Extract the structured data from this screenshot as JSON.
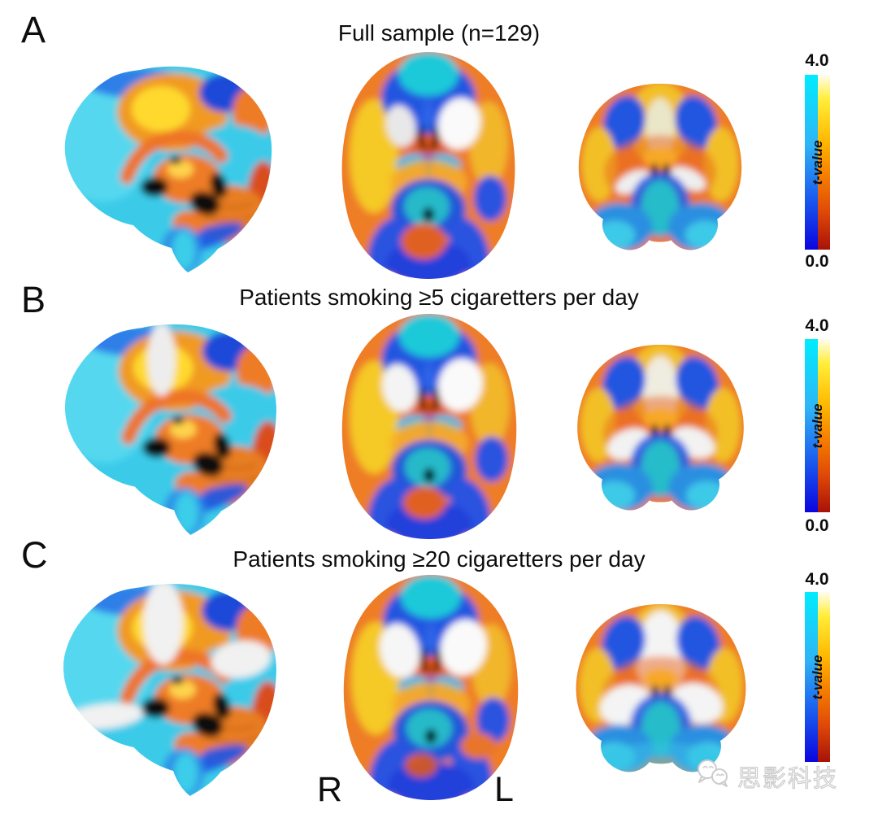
{
  "figure": {
    "panels": [
      {
        "letter": "A",
        "title": "Full sample (n=129)",
        "colorbar": {
          "max": "4.0",
          "min": "0.0",
          "label": "t-value"
        }
      },
      {
        "letter": "B",
        "title": "Patients smoking ≥5 cigaretters per day",
        "colorbar": {
          "max": "4.0",
          "min": "0.0",
          "label": "t-value"
        }
      },
      {
        "letter": "C",
        "title": "Patients smoking ≥20 cigaretters per day",
        "colorbar": {
          "max": "4.0",
          "min": "",
          "label": "t-value"
        }
      }
    ],
    "orientation": {
      "right_label": "R",
      "left_label": "L"
    },
    "watermark": {
      "text": "思影科技"
    },
    "colors": {
      "background": "#ffffff",
      "text": "#0d0d0d",
      "colorbar_cold_top": "#00ecff",
      "colorbar_cold_bottom": "#0b04e0",
      "colorbar_hot_top": "#fffdf0",
      "colorbar_hot_mid": "#ffb800",
      "colorbar_hot_bottom": "#a81208",
      "brain_hot": "#ee7d28",
      "brain_cold": "#3bcbe9",
      "watermark_gray": "#cccccc"
    }
  }
}
